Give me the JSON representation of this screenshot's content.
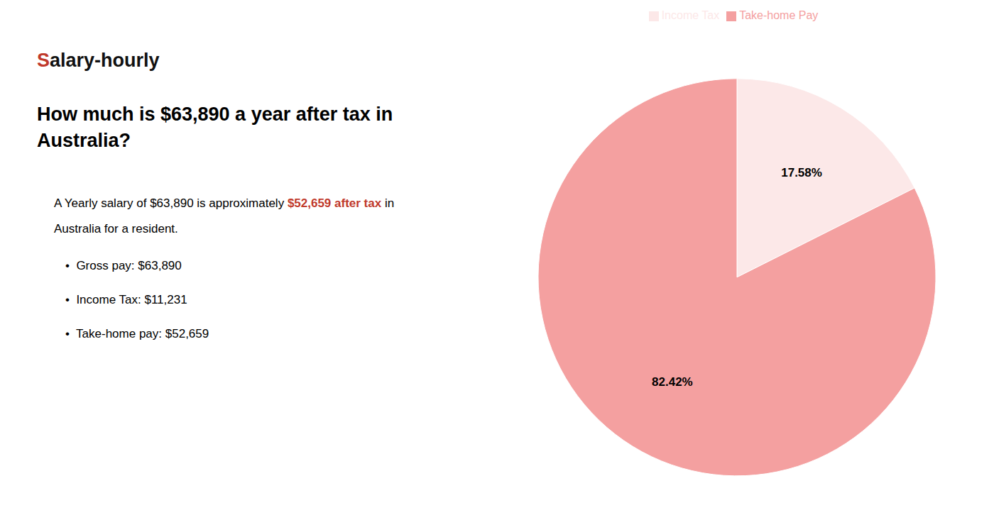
{
  "chart_data": {
    "type": "pie",
    "title": [
      "How much is $63,890 a year after tax in",
      "Australia?"
    ],
    "categories": [
      "Income Tax",
      "Take-home Pay"
    ],
    "values": [
      17.58,
      82.42
    ],
    "value_labels": [
      "17.58%",
      "82.42%"
    ],
    "colors": [
      "#fce8e8",
      "#f4a0a0"
    ],
    "data_labels": true,
    "legend": "top",
    "annotations": [
      [
        {
          "text": "S",
          "color": "#c0392b"
        },
        {
          "text": "alary-hourly",
          "color": "#111111"
        }
      ],
      [
        {
          "text": "A Yearly salary of $63,890 is approximately "
        },
        {
          "text": "$52,659 after tax",
          "color": "#c0392b"
        },
        {
          "text": " in"
        }
      ],
      [
        {
          "text": "Australia for a resident."
        }
      ],
      [
        {
          "text": "•  Gross pay: $63,890"
        }
      ],
      [
        {
          "text": "•  Income Tax: $11,231"
        }
      ],
      [
        {
          "text": "•  Take-home pay: $52,659"
        }
      ]
    ]
  }
}
